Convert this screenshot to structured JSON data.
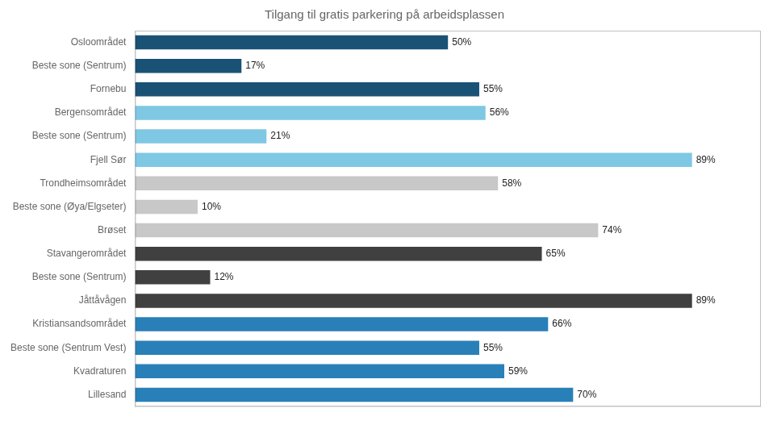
{
  "chart_data": {
    "type": "bar",
    "orientation": "horizontal",
    "title": "Tilgang til gratis parkering på arbeidsplassen",
    "categories": [
      "Lillesand",
      "Kvadraturen",
      "Beste sone (Sentrum Vest)",
      "Kristiansandsområdet",
      "Jåttåvågen",
      "Beste sone (Sentrum)",
      "Stavangerområdet",
      "Brøset",
      "Beste sone (Øya/Elgseter)",
      "Trondheimsområdet",
      "Fjell Sør",
      "Beste sone (Sentrum)",
      "Bergensområdet",
      "Fornebu",
      "Beste sone (Sentrum)",
      "Osloområdet"
    ],
    "values": [
      70,
      59,
      55,
      66,
      89,
      12,
      65,
      74,
      10,
      58,
      89,
      21,
      56,
      55,
      17,
      50
    ],
    "value_labels": [
      "70%",
      "59%",
      "55%",
      "66%",
      "89%",
      "12%",
      "65%",
      "74%",
      "10%",
      "58%",
      "89%",
      "21%",
      "56%",
      "55%",
      "17%",
      "50%"
    ],
    "colors": [
      "#2980B9",
      "#2980B9",
      "#2980B9",
      "#2980B9",
      "#404040",
      "#404040",
      "#404040",
      "#C8C8C8",
      "#C8C8C8",
      "#C8C8C8",
      "#7EC8E3",
      "#7EC8E3",
      "#7EC8E3",
      "#1A5276",
      "#1A5276",
      "#1A5276"
    ],
    "xlim": [
      0,
      100
    ],
    "data_labels": true,
    "tick_labels": "y",
    "grid": false
  }
}
